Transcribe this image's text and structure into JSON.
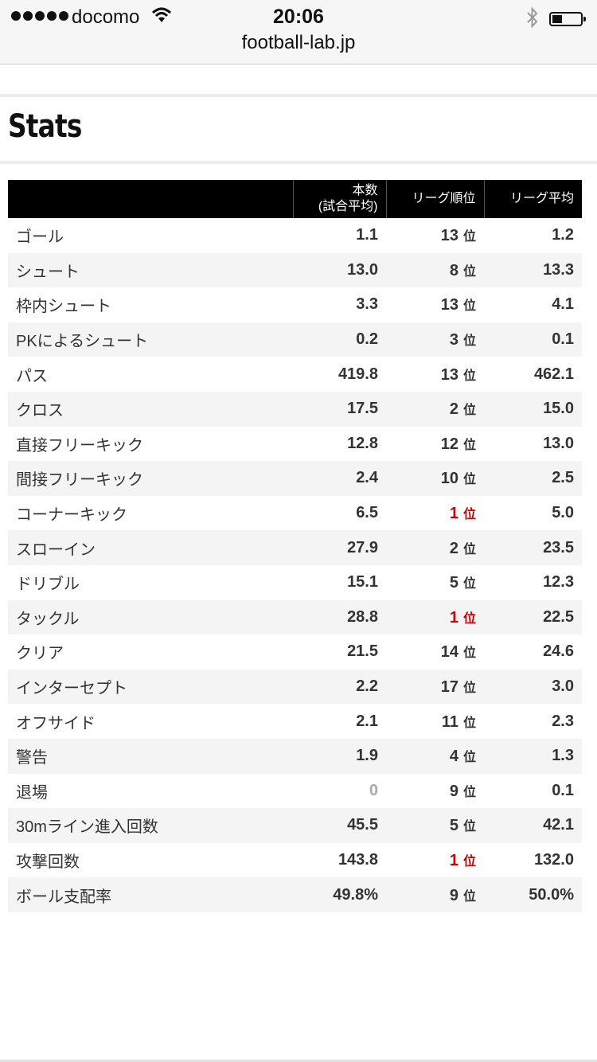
{
  "status_bar": {
    "carrier": "docomo",
    "time": "20:06"
  },
  "browser": {
    "url": "football-lab.jp"
  },
  "section": {
    "title": "Stats"
  },
  "table": {
    "headers": [
      "",
      "本数\n(試合平均)",
      "リーグ順位",
      "リーグ平均"
    ],
    "rank_unit": "位",
    "rows": [
      {
        "label": "ゴール",
        "value": "1.1",
        "rank": "13",
        "avg": "1.2"
      },
      {
        "label": "シュート",
        "value": "13.0",
        "rank": "8",
        "avg": "13.3"
      },
      {
        "label": "枠内シュート",
        "value": "3.3",
        "rank": "13",
        "avg": "4.1"
      },
      {
        "label": "PKによるシュート",
        "value": "0.2",
        "rank": "3",
        "avg": "0.1"
      },
      {
        "label": "パス",
        "value": "419.8",
        "rank": "13",
        "avg": "462.1"
      },
      {
        "label": "クロス",
        "value": "17.5",
        "rank": "2",
        "avg": "15.0"
      },
      {
        "label": "直接フリーキック",
        "value": "12.8",
        "rank": "12",
        "avg": "13.0"
      },
      {
        "label": "間接フリーキック",
        "value": "2.4",
        "rank": "10",
        "avg": "2.5"
      },
      {
        "label": "コーナーキック",
        "value": "6.5",
        "rank": "1",
        "avg": "5.0"
      },
      {
        "label": "スローイン",
        "value": "27.9",
        "rank": "2",
        "avg": "23.5"
      },
      {
        "label": "ドリブル",
        "value": "15.1",
        "rank": "5",
        "avg": "12.3"
      },
      {
        "label": "タックル",
        "value": "28.8",
        "rank": "1",
        "avg": "22.5"
      },
      {
        "label": "クリア",
        "value": "21.5",
        "rank": "14",
        "avg": "24.6"
      },
      {
        "label": "インターセプト",
        "value": "2.2",
        "rank": "17",
        "avg": "3.0"
      },
      {
        "label": "オフサイド",
        "value": "2.1",
        "rank": "11",
        "avg": "2.3"
      },
      {
        "label": "警告",
        "value": "1.9",
        "rank": "4",
        "avg": "1.3"
      },
      {
        "label": "退場",
        "value": "0",
        "rank": "9",
        "avg": "0.1"
      },
      {
        "label": "30mライン進入回数",
        "value": "45.5",
        "rank": "5",
        "avg": "42.1"
      },
      {
        "label": "攻撃回数",
        "value": "143.8",
        "rank": "1",
        "avg": "132.0"
      },
      {
        "label": "ボール支配率",
        "value": "49.8%",
        "rank": "9",
        "avg": "50.0%"
      }
    ]
  },
  "colors": {
    "top_rank": "#cc0000",
    "zero_value": "#aaaaaa",
    "header_bg": "#000000"
  }
}
